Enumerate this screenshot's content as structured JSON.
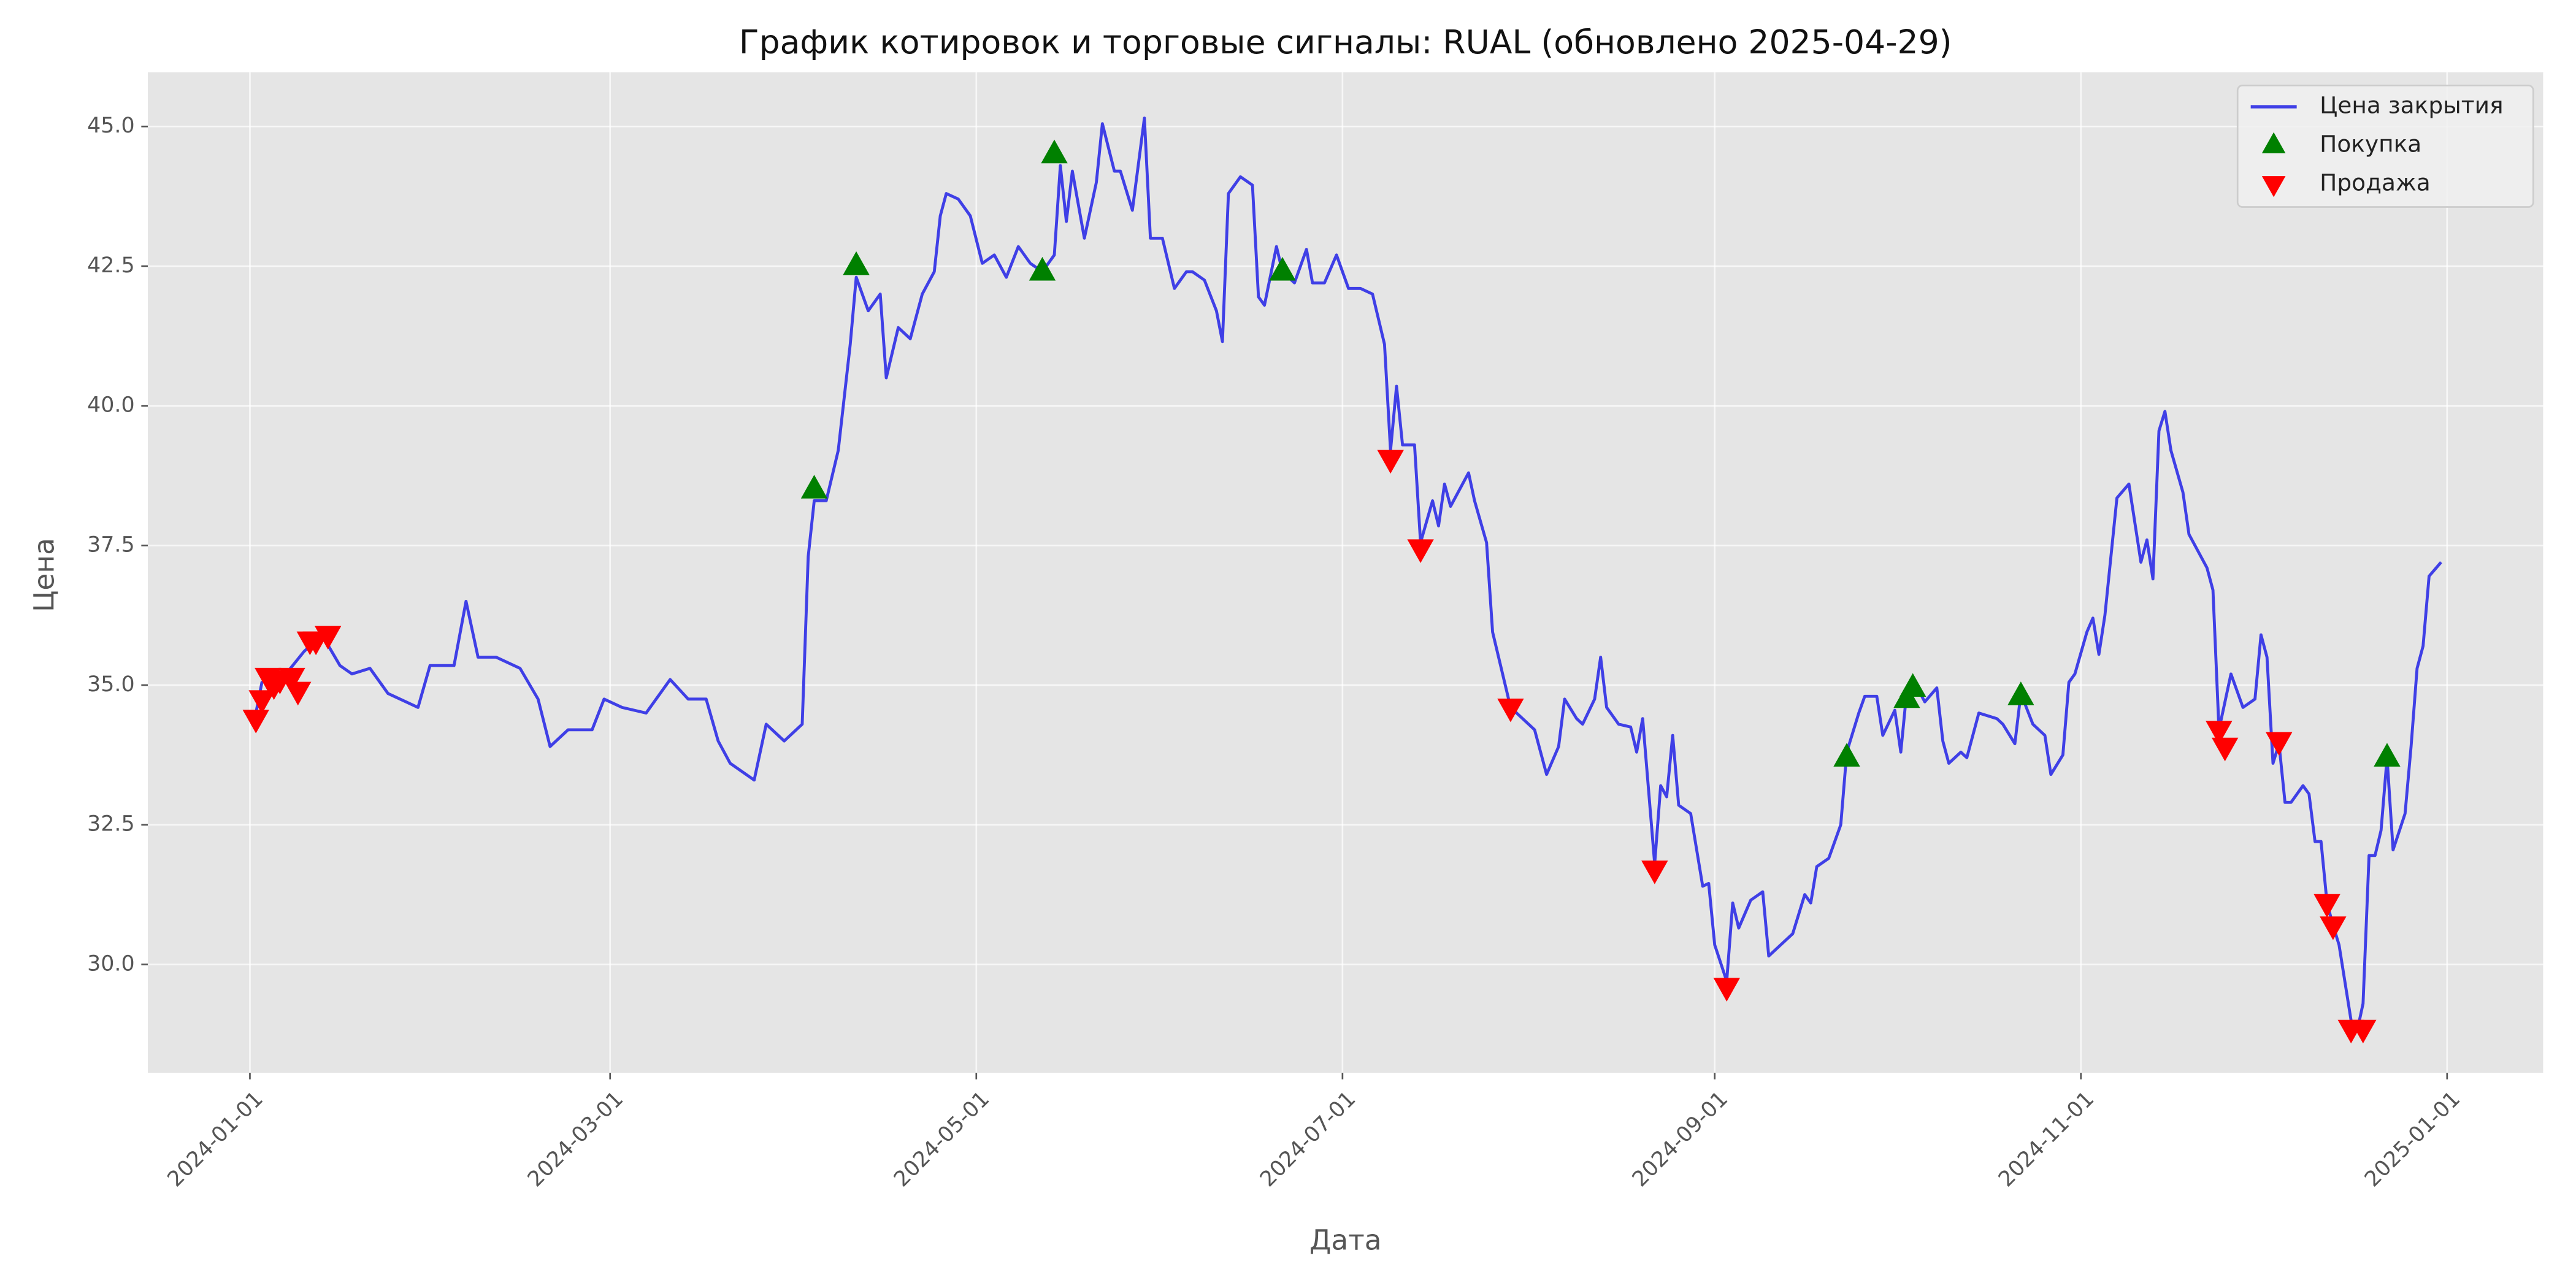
{
  "chart_data": {
    "type": "line",
    "title": "График котировок и торговые сигналы: RUAL (обновлено 2025-04-29)",
    "xlabel": "Дата",
    "ylabel": "Цена",
    "xlim": [
      "2023-12-15",
      "2025-01-17"
    ],
    "xticks": [
      "2024-01-01",
      "2024-03-01",
      "2024-05-01",
      "2024-07-01",
      "2024-09-01",
      "2024-11-01",
      "2025-01-01"
    ],
    "ylim": [
      28.06,
      45.97
    ],
    "yticks": [
      {
        "value": 30,
        "label": "30.0"
      },
      32.5,
      {
        "value": 35,
        "label": "35.0"
      },
      37.5,
      {
        "value": 40,
        "label": "40.0"
      },
      42.5,
      {
        "value": 45,
        "label": "45.0"
      }
    ],
    "grid": true,
    "legend": "upper right",
    "series": [
      {
        "name": "Цена закрытия",
        "type": "line",
        "color": "#3f3fe6",
        "x": [
          "2024-01-02",
          "2024-01-03",
          "2024-01-07",
          "2024-01-10",
          "2024-01-13",
          "2024-01-16",
          "2024-01-18",
          "2024-01-21",
          "2024-01-24",
          "2024-01-27",
          "2024-01-29",
          "2024-01-31",
          "2024-02-04",
          "2024-02-06",
          "2024-02-08",
          "2024-02-11",
          "2024-02-15",
          "2024-02-18",
          "2024-02-20",
          "2024-02-23",
          "2024-02-27",
          "2024-02-29",
          "2024-03-03",
          "2024-03-07",
          "2024-03-11",
          "2024-03-14",
          "2024-03-17",
          "2024-03-19",
          "2024-03-21",
          "2024-03-25",
          "2024-03-27",
          "2024-03-30",
          "2024-04-02",
          "2024-04-03",
          "2024-04-04",
          "2024-04-06",
          "2024-04-08",
          "2024-04-10",
          "2024-04-11",
          "2024-04-13",
          "2024-04-15",
          "2024-04-16",
          "2024-04-18",
          "2024-04-20",
          "2024-04-22",
          "2024-04-24",
          "2024-04-25",
          "2024-04-26",
          "2024-04-28",
          "2024-04-30",
          "2024-05-02",
          "2024-05-04",
          "2024-05-06",
          "2024-05-08",
          "2024-05-10",
          "2024-05-12",
          "2024-05-14",
          "2024-05-15",
          "2024-05-16",
          "2024-05-17",
          "2024-05-19",
          "2024-05-21",
          "2024-05-22",
          "2024-05-24",
          "2024-05-25",
          "2024-05-27",
          "2024-05-29",
          "2024-05-30",
          "2024-06-01",
          "2024-06-03",
          "2024-06-05",
          "2024-06-06",
          "2024-06-08",
          "2024-06-10",
          "2024-06-11",
          "2024-06-12",
          "2024-06-14",
          "2024-06-16",
          "2024-06-17",
          "2024-06-18",
          "2024-06-20",
          "2024-06-21",
          "2024-06-23",
          "2024-06-25",
          "2024-06-26",
          "2024-06-28",
          "2024-06-30",
          "2024-07-02",
          "2024-07-04",
          "2024-07-06",
          "2024-07-08",
          "2024-07-09",
          "2024-07-10",
          "2024-07-11",
          "2024-07-13",
          "2024-07-14",
          "2024-07-16",
          "2024-07-17",
          "2024-07-18",
          "2024-07-19",
          "2024-07-22",
          "2024-07-23",
          "2024-07-25",
          "2024-07-26",
          "2024-07-27",
          "2024-07-29",
          "2024-07-31",
          "2024-08-02",
          "2024-08-04",
          "2024-08-06",
          "2024-08-07",
          "2024-08-09",
          "2024-08-10",
          "2024-08-12",
          "2024-08-13",
          "2024-08-14",
          "2024-08-16",
          "2024-08-18",
          "2024-08-19",
          "2024-08-20",
          "2024-08-22",
          "2024-08-23",
          "2024-08-24",
          "2024-08-25",
          "2024-08-26",
          "2024-08-28",
          "2024-08-30",
          "2024-08-31",
          "2024-09-01",
          "2024-09-03",
          "2024-09-04",
          "2024-09-05",
          "2024-09-07",
          "2024-09-09",
          "2024-09-10",
          "2024-09-12",
          "2024-09-14",
          "2024-09-16",
          "2024-09-17",
          "2024-09-18",
          "2024-09-20",
          "2024-09-22",
          "2024-09-23",
          "2024-09-25",
          "2024-09-26",
          "2024-09-28",
          "2024-09-29",
          "2024-10-01",
          "2024-10-02",
          "2024-10-03",
          "2024-10-05",
          "2024-10-06",
          "2024-10-08",
          "2024-10-09",
          "2024-10-10",
          "2024-10-12",
          "2024-10-13",
          "2024-10-15",
          "2024-10-18",
          "2024-10-19",
          "2024-10-21",
          "2024-10-22",
          "2024-10-24",
          "2024-10-26",
          "2024-10-27",
          "2024-10-29",
          "2024-10-30",
          "2024-10-31",
          "2024-11-02",
          "2024-11-03",
          "2024-11-04",
          "2024-11-05",
          "2024-11-07",
          "2024-11-09",
          "2024-11-11",
          "2024-11-12",
          "2024-11-13",
          "2024-11-14",
          "2024-11-15",
          "2024-11-16",
          "2024-11-18",
          "2024-11-19",
          "2024-11-22",
          "2024-11-23",
          "2024-11-24",
          "2024-11-26",
          "2024-11-28",
          "2024-11-30",
          "2024-12-01",
          "2024-12-02",
          "2024-12-03",
          "2024-12-04",
          "2024-12-05",
          "2024-12-06",
          "2024-12-08",
          "2024-12-09",
          "2024-12-10",
          "2024-12-11",
          "2024-12-12",
          "2024-12-13",
          "2024-12-14",
          "2024-12-16",
          "2024-12-17",
          "2024-12-18",
          "2024-12-19",
          "2024-12-20",
          "2024-12-21",
          "2024-12-22",
          "2024-12-23",
          "2024-12-25",
          "2024-12-26",
          "2024-12-27",
          "2024-12-28",
          "2024-12-29",
          "2024-12-31"
        ],
        "values": [
          34.5,
          35.05,
          35.2,
          35.6,
          35.9,
          35.35,
          35.2,
          35.3,
          34.85,
          34.7,
          34.6,
          35.35,
          35.35,
          36.5,
          35.5,
          35.5,
          35.3,
          34.75,
          33.9,
          34.2,
          34.2,
          34.75,
          34.6,
          34.5,
          35.1,
          34.75,
          34.75,
          34.0,
          33.6,
          33.3,
          34.3,
          34.0,
          34.3,
          37.3,
          38.3,
          38.3,
          39.2,
          41.1,
          42.3,
          41.7,
          42.0,
          40.5,
          41.4,
          41.2,
          42.0,
          42.4,
          43.4,
          43.8,
          43.7,
          43.4,
          42.55,
          42.7,
          42.3,
          42.85,
          42.55,
          42.4,
          42.7,
          44.3,
          43.3,
          44.2,
          43.0,
          44.0,
          45.05,
          44.2,
          44.2,
          43.5,
          45.15,
          43.0,
          43.0,
          42.1,
          42.4,
          42.4,
          42.25,
          41.7,
          41.15,
          43.8,
          44.1,
          43.95,
          41.95,
          41.8,
          42.85,
          42.4,
          42.2,
          42.8,
          42.2,
          42.2,
          42.7,
          42.1,
          42.1,
          42.0,
          41.1,
          39.2,
          40.35,
          39.3,
          39.3,
          37.55,
          38.3,
          37.85,
          38.6,
          38.2,
          38.8,
          38.3,
          37.55,
          35.95,
          35.5,
          34.6,
          34.4,
          34.2,
          33.4,
          33.9,
          34.75,
          34.4,
          34.3,
          34.75,
          35.5,
          34.6,
          34.3,
          34.25,
          33.8,
          34.4,
          31.8,
          33.2,
          33.0,
          34.1,
          32.85,
          32.7,
          31.4,
          31.45,
          30.35,
          29.7,
          31.1,
          30.65,
          31.15,
          31.3,
          30.15,
          30.35,
          30.55,
          31.25,
          31.1,
          31.75,
          31.9,
          32.5,
          33.8,
          34.5,
          34.8,
          34.8,
          34.1,
          34.55,
          33.8,
          34.9,
          34.9,
          34.7,
          34.95,
          34.0,
          33.6,
          33.8,
          33.7,
          34.5,
          34.4,
          34.3,
          33.95,
          34.85,
          34.3,
          34.1,
          33.4,
          33.75,
          35.05,
          35.2,
          35.95,
          36.2,
          35.55,
          36.25,
          38.35,
          38.6,
          37.2,
          37.6,
          36.9,
          39.55,
          39.9,
          39.2,
          38.45,
          37.7,
          37.1,
          36.7,
          34.2,
          35.2,
          34.6,
          34.75,
          35.9,
          35.5,
          33.6,
          33.95,
          32.9,
          32.9,
          33.2,
          33.05,
          32.2,
          32.2,
          31.1,
          30.7,
          30.35,
          29.0,
          28.8,
          29.3,
          31.95,
          31.95,
          32.4,
          33.7,
          32.05,
          32.7,
          33.9,
          35.3,
          35.7,
          36.95,
          37.2
        ]
      },
      {
        "name": "Покупка",
        "type": "scatter",
        "marker": "triangle-up",
        "color": "#008000",
        "x": [
          "2024-04-04",
          "2024-04-11",
          "2024-05-12",
          "2024-05-14",
          "2024-06-21",
          "2024-09-23",
          "2024-10-03",
          "2024-10-04",
          "2024-10-22",
          "2024-12-22"
        ],
        "values": [
          38.5,
          42.5,
          42.4,
          44.5,
          42.4,
          33.7,
          34.75,
          34.95,
          34.8,
          33.7
        ]
      },
      {
        "name": "Продажа",
        "type": "scatter",
        "marker": "triangle-down",
        "color": "#ff0000",
        "x": [
          "2024-01-02",
          "2024-01-03",
          "2024-01-04",
          "2024-01-05",
          "2024-01-06",
          "2024-01-08",
          "2024-01-09",
          "2024-01-11",
          "2024-01-12",
          "2024-01-14",
          "2024-07-09",
          "2024-07-14",
          "2024-07-29",
          "2024-08-22",
          "2024-09-03",
          "2024-11-24",
          "2024-11-25",
          "2024-12-04",
          "2024-12-12",
          "2024-12-13",
          "2024-12-16",
          "2024-12-18"
        ],
        "values": [
          34.4,
          34.75,
          35.15,
          35.0,
          35.1,
          35.15,
          34.9,
          35.8,
          35.8,
          35.9,
          39.05,
          37.45,
          34.6,
          31.7,
          29.6,
          34.2,
          33.9,
          34.0,
          31.1,
          30.7,
          28.85,
          28.85
        ]
      }
    ]
  }
}
